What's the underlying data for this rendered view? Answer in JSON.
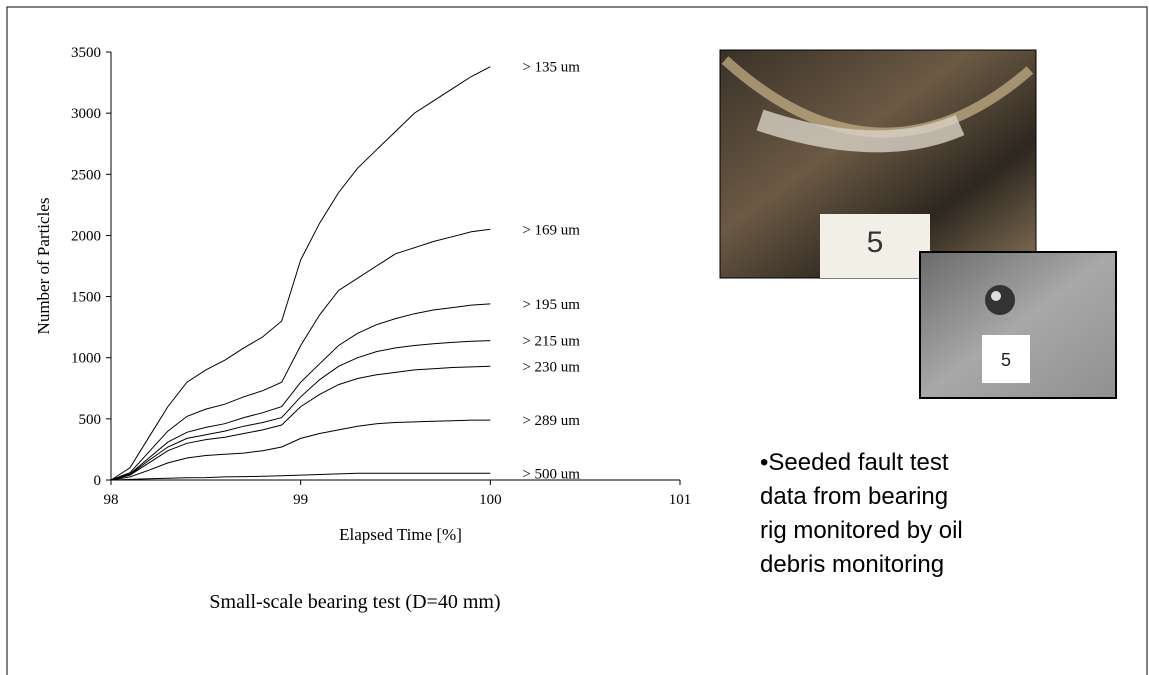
{
  "chart_data": {
    "type": "line",
    "x_label": "Elapsed Time [%]",
    "y_label": "Number of Particles",
    "x": [
      98,
      98.1,
      98.2,
      98.3,
      98.4,
      98.5,
      98.6,
      98.7,
      98.8,
      98.9,
      99,
      99.1,
      99.2,
      99.3,
      99.4,
      99.5,
      99.6,
      99.7,
      99.8,
      99.9,
      100
    ],
    "series": [
      {
        "name": "> 135 um",
        "color": "#000000",
        "values": [
          0,
          100,
          350,
          600,
          800,
          900,
          980,
          1080,
          1170,
          1300,
          1800,
          2100,
          2350,
          2550,
          2700,
          2850,
          3000,
          3100,
          3200,
          3300,
          3380
        ]
      },
      {
        "name": "> 169 um",
        "color": "#000000",
        "values": [
          0,
          60,
          230,
          400,
          520,
          580,
          620,
          680,
          730,
          800,
          1100,
          1350,
          1550,
          1650,
          1750,
          1850,
          1900,
          1950,
          1990,
          2030,
          2050
        ]
      },
      {
        "name": "> 195 um",
        "color": "#000000",
        "values": [
          0,
          50,
          180,
          310,
          390,
          430,
          460,
          510,
          550,
          600,
          800,
          950,
          1100,
          1200,
          1270,
          1320,
          1360,
          1390,
          1410,
          1430,
          1440
        ]
      },
      {
        "name": "> 215 um",
        "color": "#000000",
        "values": [
          0,
          45,
          160,
          270,
          340,
          370,
          400,
          440,
          470,
          510,
          680,
          820,
          930,
          1000,
          1050,
          1080,
          1100,
          1115,
          1125,
          1135,
          1140
        ]
      },
      {
        "name": "> 230 um",
        "color": "#000000",
        "values": [
          0,
          40,
          140,
          240,
          300,
          330,
          350,
          380,
          410,
          450,
          600,
          700,
          780,
          830,
          860,
          880,
          900,
          910,
          920,
          925,
          930
        ]
      },
      {
        "name": "> 289 um",
        "color": "#000000",
        "values": [
          0,
          25,
          80,
          140,
          180,
          200,
          210,
          220,
          240,
          270,
          340,
          380,
          410,
          440,
          460,
          470,
          475,
          480,
          485,
          490,
          490
        ]
      },
      {
        "name": "> 500 um",
        "color": "#000000",
        "values": [
          0,
          5,
          10,
          15,
          18,
          20,
          25,
          28,
          30,
          35,
          40,
          45,
          50,
          55,
          55,
          55,
          55,
          55,
          55,
          55,
          55
        ]
      }
    ],
    "xlim": [
      98,
      101
    ],
    "xticks": [
      98,
      99,
      100,
      101
    ],
    "ylim": [
      0,
      3500
    ],
    "yticks": [
      0,
      500,
      1000,
      1500,
      2000,
      2500,
      3000,
      3500
    ]
  },
  "caption": "Small-scale bearing test (D=40 mm)",
  "bullet_lines": [
    "•Seeded fault test",
    "data from  bearing",
    "rig monitored by oil",
    "debris monitoring"
  ]
}
